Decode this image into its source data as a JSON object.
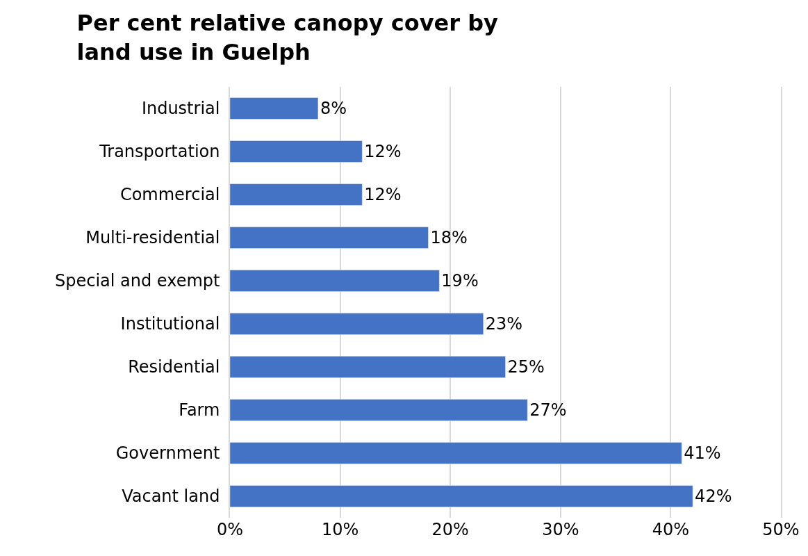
{
  "chart_data": {
    "type": "bar",
    "orientation": "horizontal",
    "title": "Per cent relative canopy cover by land use in Guelph",
    "categories": [
      "Industrial",
      "Transportation",
      "Commercial",
      "Multi-residential",
      "Special and exempt",
      "Institutional",
      "Residential",
      "Farm",
      "Government",
      "Vacant land"
    ],
    "values": [
      8,
      12,
      12,
      18,
      19,
      23,
      25,
      27,
      41,
      42
    ],
    "value_labels": [
      "8%",
      "12%",
      "12%",
      "18%",
      "19%",
      "23%",
      "25%",
      "27%",
      "41%",
      "42%"
    ],
    "color": "#4472c4",
    "xlim": [
      0,
      50
    ],
    "xticks": [
      {
        "value": 0,
        "label": "0%"
      },
      {
        "value": 10,
        "label": "10%"
      },
      {
        "value": 20,
        "label": "20%"
      },
      {
        "value": 30,
        "label": "30%"
      },
      {
        "value": 40,
        "label": "40%"
      },
      {
        "value": 50,
        "label": "50%"
      }
    ],
    "grid": "x"
  }
}
